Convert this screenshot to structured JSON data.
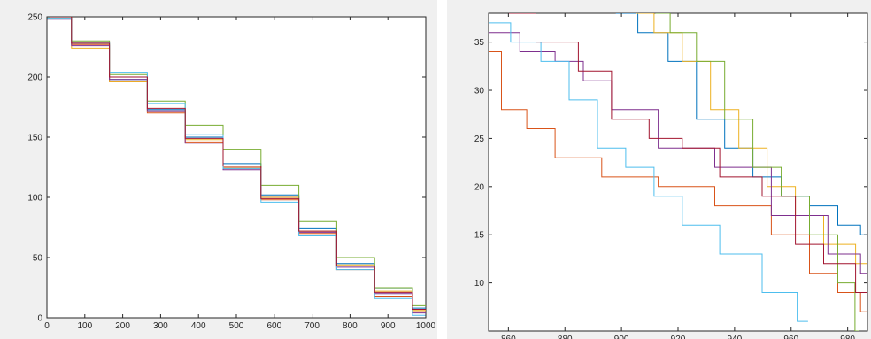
{
  "chart_data": [
    {
      "type": "line",
      "title": "",
      "xlabel": "",
      "ylabel": "",
      "xlim": [
        0,
        1000
      ],
      "ylim": [
        0,
        250
      ],
      "xticks": [
        "0",
        "100",
        "200",
        "300",
        "400",
        "500",
        "600",
        "700",
        "800",
        "900",
        "1000"
      ],
      "yticks": [
        "0",
        "50",
        "100",
        "150",
        "200",
        "250"
      ],
      "grid": false,
      "legend": "none",
      "series": [
        {
          "color": "#0072BD",
          "points": [
            [
              0,
              250
            ],
            [
              100,
              228
            ],
            [
              200,
              198
            ],
            [
              300,
              173
            ],
            [
              400,
              150
            ],
            [
              500,
              128
            ],
            [
              600,
              102
            ],
            [
              700,
              74
            ],
            [
              800,
              45
            ],
            [
              900,
              24
            ],
            [
              1000,
              8
            ]
          ]
        },
        {
          "color": "#D95319",
          "points": [
            [
              0,
              250
            ],
            [
              100,
              227
            ],
            [
              200,
              196
            ],
            [
              300,
              170
            ],
            [
              400,
              146
            ],
            [
              500,
              125
            ],
            [
              600,
              98
            ],
            [
              700,
              70
            ],
            [
              800,
              40
            ],
            [
              900,
              18
            ],
            [
              1000,
              5
            ]
          ]
        },
        {
          "color": "#EDB120",
          "points": [
            [
              0,
              249
            ],
            [
              100,
              224
            ],
            [
              200,
              196
            ],
            [
              300,
              171
            ],
            [
              400,
              148
            ],
            [
              500,
              124
            ],
            [
              600,
              100
            ],
            [
              700,
              72
            ],
            [
              800,
              44
            ],
            [
              900,
              22
            ],
            [
              1000,
              6
            ]
          ]
        },
        {
          "color": "#7E2F8E",
          "points": [
            [
              0,
              248
            ],
            [
              100,
              226
            ],
            [
              200,
              198
            ],
            [
              300,
              172
            ],
            [
              400,
              145
            ],
            [
              500,
              123
            ],
            [
              600,
              101
            ],
            [
              700,
              71
            ],
            [
              800,
              42
            ],
            [
              900,
              20
            ],
            [
              1000,
              4
            ]
          ]
        },
        {
          "color": "#77AC30",
          "points": [
            [
              0,
              250
            ],
            [
              100,
              230
            ],
            [
              200,
              202
            ],
            [
              300,
              180
            ],
            [
              400,
              160
            ],
            [
              500,
              140
            ],
            [
              600,
              110
            ],
            [
              700,
              80
            ],
            [
              800,
              50
            ],
            [
              900,
              25
            ],
            [
              1000,
              10
            ]
          ]
        },
        {
          "color": "#4DBEEE",
          "points": [
            [
              0,
              249
            ],
            [
              100,
              229
            ],
            [
              200,
              204
            ],
            [
              300,
              178
            ],
            [
              400,
              152
            ],
            [
              500,
              124
            ],
            [
              600,
              96
            ],
            [
              700,
              68
            ],
            [
              800,
              40
            ],
            [
              900,
              16
            ],
            [
              1000,
              2
            ]
          ]
        },
        {
          "color": "#A2142F",
          "points": [
            [
              0,
              250
            ],
            [
              100,
              228
            ],
            [
              200,
              200
            ],
            [
              300,
              174
            ],
            [
              400,
              149
            ],
            [
              500,
              126
            ],
            [
              600,
              99
            ],
            [
              700,
              72
            ],
            [
              800,
              43
            ],
            [
              900,
              21
            ],
            [
              1000,
              7
            ]
          ]
        }
      ]
    },
    {
      "type": "line",
      "title": "",
      "xlabel": "",
      "ylabel": "",
      "xlim": [
        853,
        987
      ],
      "ylim": [
        5,
        38
      ],
      "xticks": [
        "860",
        "880",
        "900",
        "920",
        "940",
        "960",
        "980"
      ],
      "yticks": [
        "10",
        "15",
        "20",
        "25",
        "30",
        "35"
      ],
      "grid": false,
      "legend": "none",
      "series": [
        {
          "color": "#0072BD",
          "points": [
            [
              898,
              38
            ],
            [
              910,
              36
            ],
            [
              920,
              33
            ],
            [
              930,
              27
            ],
            [
              940,
              24
            ],
            [
              950,
              21
            ],
            [
              960,
              19
            ],
            [
              970,
              18
            ],
            [
              980,
              16
            ],
            [
              987,
              15
            ]
          ]
        },
        {
          "color": "#D95319",
          "points": [
            [
              853,
              34
            ],
            [
              860,
              28
            ],
            [
              870,
              26
            ],
            [
              880,
              23
            ],
            [
              900,
              21
            ],
            [
              920,
              20
            ],
            [
              940,
              18
            ],
            [
              960,
              15
            ],
            [
              970,
              11
            ],
            [
              980,
              9
            ],
            [
              987,
              7
            ]
          ]
        },
        {
          "color": "#EDB120",
          "points": [
            [
              905,
              38
            ],
            [
              915,
              36
            ],
            [
              925,
              33
            ],
            [
              935,
              28
            ],
            [
              945,
              24
            ],
            [
              955,
              20
            ],
            [
              965,
              17
            ],
            [
              975,
              14
            ],
            [
              987,
              12
            ]
          ]
        },
        {
          "color": "#7E2F8E",
          "points": [
            [
              853,
              36
            ],
            [
              870,
              34
            ],
            [
              880,
              33
            ],
            [
              890,
              31
            ],
            [
              900,
              28
            ],
            [
              920,
              24
            ],
            [
              940,
              22
            ],
            [
              960,
              17
            ],
            [
              980,
              13
            ],
            [
              987,
              11
            ]
          ]
        },
        {
          "color": "#77AC30",
          "points": [
            [
              912,
              38
            ],
            [
              920,
              36
            ],
            [
              930,
              33
            ],
            [
              940,
              27
            ],
            [
              950,
              22
            ],
            [
              960,
              19
            ],
            [
              970,
              15
            ],
            [
              980,
              10
            ],
            [
              984,
              5
            ]
          ]
        },
        {
          "color": "#4DBEEE",
          "points": [
            [
              853,
              37
            ],
            [
              865,
              35
            ],
            [
              875,
              33
            ],
            [
              885,
              29
            ],
            [
              895,
              24
            ],
            [
              905,
              22
            ],
            [
              915,
              19
            ],
            [
              925,
              16
            ],
            [
              940,
              13
            ],
            [
              955,
              9
            ],
            [
              966,
              6
            ]
          ]
        },
        {
          "color": "#A2142F",
          "points": [
            [
              860,
              38
            ],
            [
              875,
              35
            ],
            [
              890,
              32
            ],
            [
              900,
              27
            ],
            [
              915,
              25
            ],
            [
              925,
              24
            ],
            [
              940,
              21
            ],
            [
              955,
              19
            ],
            [
              965,
              14
            ],
            [
              975,
              12
            ],
            [
              987,
              9
            ]
          ]
        }
      ]
    }
  ]
}
